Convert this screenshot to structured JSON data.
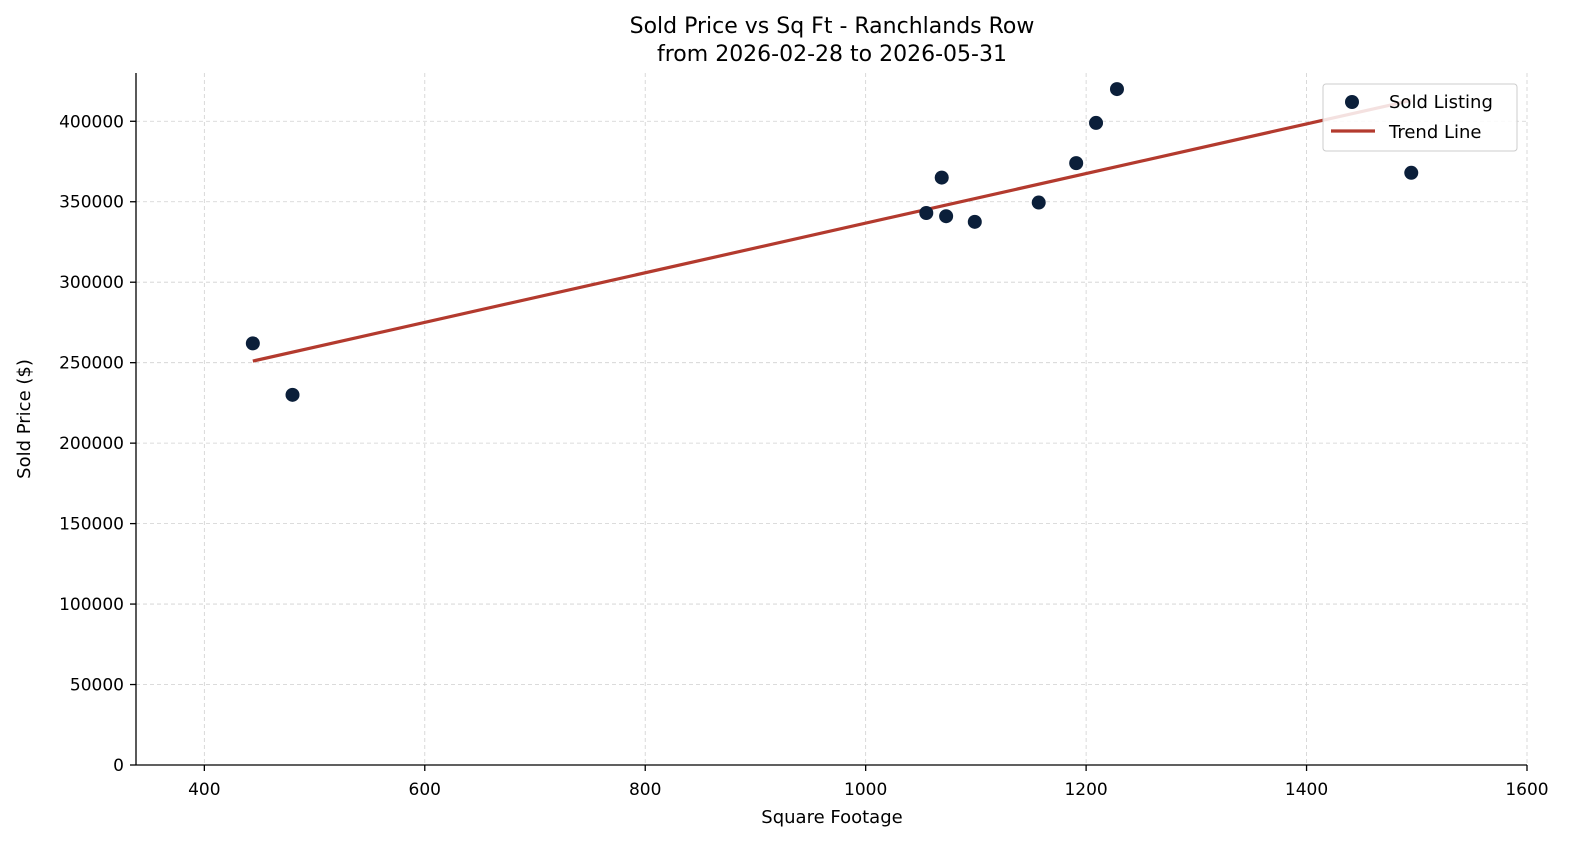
{
  "chart_data": {
    "type": "scatter",
    "title": "Sold Price vs Sq Ft - Ranchlands Row",
    "subtitle": "from 2026-02-28 to 2026-05-31",
    "xlabel": "Square Footage",
    "ylabel": "Sold Price ($)",
    "xlim": [
      338,
      1600
    ],
    "ylim": [
      0,
      430000
    ],
    "x_ticks": [
      400,
      600,
      800,
      1000,
      1200,
      1400,
      1600
    ],
    "x_tick_labels": [
      "400",
      "600",
      "800",
      "1000",
      "1200",
      "1400",
      "1600"
    ],
    "y_ticks": [
      0,
      50000,
      100000,
      150000,
      200000,
      250000,
      300000,
      350000,
      400000
    ],
    "y_tick_labels": [
      "0",
      "50000",
      "100000",
      "150000",
      "200000",
      "250000",
      "300000",
      "350000",
      "400000"
    ],
    "grid": true,
    "legend_position": "top-right",
    "series": [
      {
        "name": "Sold Listing",
        "kind": "scatter",
        "color": "#0b1f3a",
        "points": [
          {
            "x": 444,
            "y": 262000
          },
          {
            "x": 480,
            "y": 230000
          },
          {
            "x": 1055,
            "y": 343000
          },
          {
            "x": 1069,
            "y": 365000
          },
          {
            "x": 1073,
            "y": 341000
          },
          {
            "x": 1099,
            "y": 337500
          },
          {
            "x": 1157,
            "y": 349500
          },
          {
            "x": 1191,
            "y": 374000
          },
          {
            "x": 1209,
            "y": 399000
          },
          {
            "x": 1228,
            "y": 420000
          },
          {
            "x": 1495,
            "y": 368000
          }
        ]
      },
      {
        "name": "Trend Line",
        "kind": "line",
        "color": "#b33a2e",
        "points": [
          {
            "x": 444,
            "y": 251000
          },
          {
            "x": 1495,
            "y": 413000
          }
        ]
      }
    ]
  }
}
